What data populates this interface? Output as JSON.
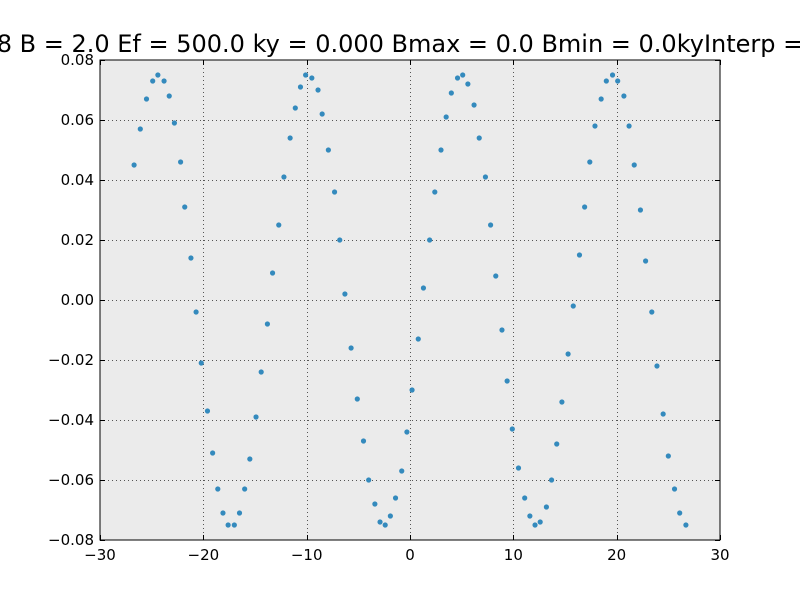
{
  "chart_data": {
    "type": "scatter",
    "title": "8 B = 2.0 Ef = 500.0 ky = 0.000 Bmax = 0.0 Bmin = 0.0kyInterp = ",
    "xlabel": "",
    "ylabel": "",
    "xlim": [
      -30,
      30
    ],
    "ylim": [
      -0.08,
      0.08
    ],
    "grid": true,
    "x_ticks": [
      -30,
      -20,
      -10,
      0,
      10,
      20,
      30
    ],
    "x_tick_labels": [
      "−30",
      "−20",
      "−10",
      "0",
      "10",
      "20",
      "30"
    ],
    "y_ticks": [
      -0.08,
      -0.06,
      -0.04,
      -0.02,
      0.0,
      0.02,
      0.04,
      0.06,
      0.08
    ],
    "y_tick_labels": [
      "−0.08",
      "−0.06",
      "−0.04",
      "−0.02",
      "0.00",
      "0.02",
      "0.04",
      "0.06",
      "0.08"
    ],
    "colors": {
      "marker": "#348abd",
      "background": "#ebebeb",
      "grid": "#555555"
    },
    "series": [
      {
        "x": [
          -26.7,
          -26.1,
          -25.5,
          -24.9,
          -24.4,
          -23.8,
          -23.3,
          -22.8,
          -22.2,
          -21.8,
          -21.2,
          -20.7,
          -20.2,
          -19.6,
          -19.1,
          -18.6,
          -18.1,
          -17.6,
          -17.0,
          -16.5,
          -16.0,
          -15.5,
          -14.9,
          -14.4,
          -13.8,
          -13.3,
          -12.7,
          -12.2,
          -11.6,
          -11.1,
          -10.6,
          -10.1,
          -9.5,
          -8.9,
          -8.5,
          -7.9,
          -7.3,
          -6.8,
          -6.3,
          -5.7,
          -5.1,
          -4.5,
          -4.0,
          -3.4,
          -2.9,
          -2.4,
          -1.9,
          -1.4,
          -0.8,
          -0.3,
          0.2,
          0.8,
          1.3,
          1.9,
          2.4,
          3.0,
          3.5,
          4.0,
          4.6,
          5.1,
          5.6,
          6.2,
          6.7,
          7.3,
          7.8,
          8.3,
          8.9,
          9.4,
          9.9,
          10.5,
          11.1,
          11.6,
          12.1,
          12.6,
          13.2,
          13.7,
          14.2,
          14.7,
          15.3,
          15.8,
          16.4,
          16.9,
          17.4,
          17.9,
          18.5,
          19.0,
          19.6,
          20.1,
          20.7,
          21.2,
          21.7,
          22.3,
          22.8,
          23.4,
          23.9,
          24.5,
          25.0,
          25.6,
          26.1,
          26.7
        ],
        "y": [
          0.045,
          0.057,
          0.067,
          0.073,
          0.075,
          0.073,
          0.068,
          0.059,
          0.046,
          0.031,
          0.014,
          -0.004,
          -0.021,
          -0.037,
          -0.051,
          -0.063,
          -0.071,
          -0.075,
          -0.075,
          -0.071,
          -0.063,
          -0.053,
          -0.039,
          -0.024,
          -0.008,
          0.009,
          0.025,
          0.041,
          0.054,
          0.064,
          0.071,
          0.075,
          0.074,
          0.07,
          0.062,
          0.05,
          0.036,
          0.02,
          0.002,
          -0.016,
          -0.033,
          -0.047,
          -0.06,
          -0.068,
          -0.074,
          -0.075,
          -0.072,
          -0.066,
          -0.057,
          -0.044,
          -0.03,
          -0.013,
          0.004,
          0.02,
          0.036,
          0.05,
          0.061,
          0.069,
          0.074,
          0.075,
          0.072,
          0.065,
          0.054,
          0.041,
          0.025,
          0.008,
          -0.01,
          -0.027,
          -0.043,
          -0.056,
          -0.066,
          -0.072,
          -0.075,
          -0.074,
          -0.069,
          -0.06,
          -0.048,
          -0.034,
          -0.018,
          -0.002,
          0.015,
          0.031,
          0.046,
          0.058,
          0.067,
          0.073,
          0.075,
          0.073,
          0.068,
          0.058,
          0.045,
          0.03,
          0.013,
          -0.004,
          -0.022,
          -0.038,
          -0.052,
          -0.063,
          -0.071,
          -0.075
        ]
      }
    ]
  }
}
